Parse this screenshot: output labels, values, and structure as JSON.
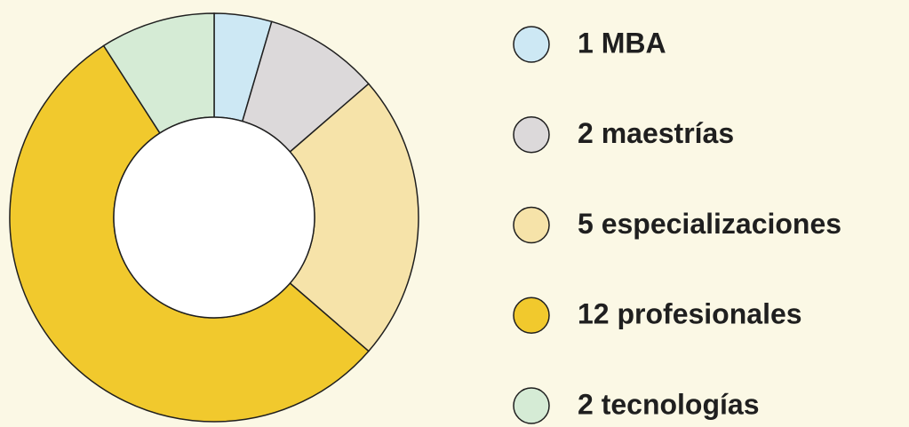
{
  "chart_data": {
    "type": "donut",
    "categories": [
      "1 MBA",
      "2 maestrías",
      "5 especializaciones",
      "12 profesionales",
      "2 tecnologías"
    ],
    "values": [
      1,
      2,
      5,
      12,
      2
    ],
    "colors": [
      "#cde8f4",
      "#dcd9da",
      "#f6e3a9",
      "#f1c92d",
      "#d5ebd5"
    ],
    "legend": "right"
  }
}
